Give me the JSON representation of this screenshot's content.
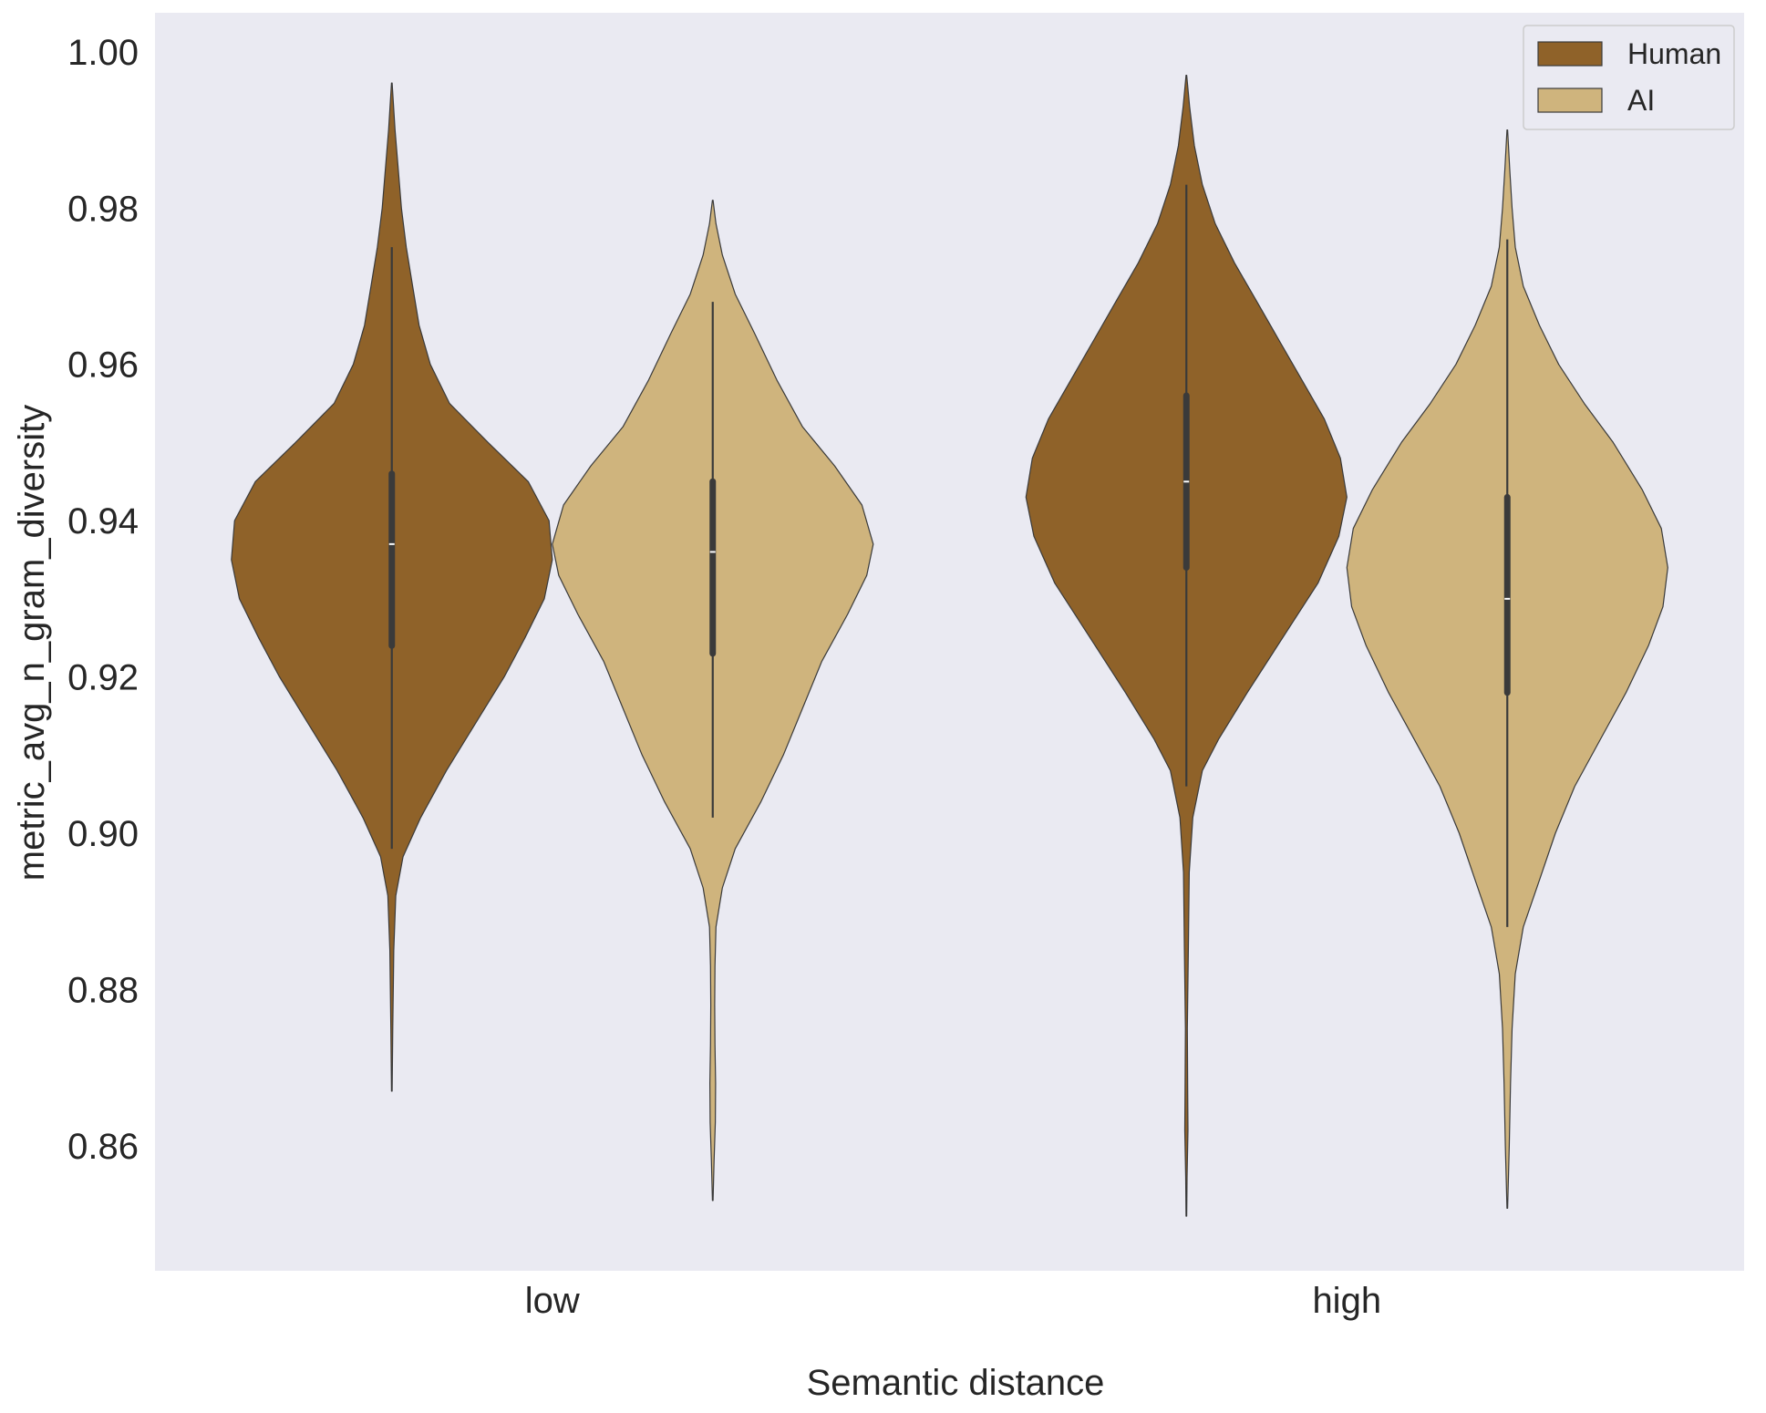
{
  "chart_data": {
    "type": "violin",
    "xlabel": "Semantic distance",
    "ylabel": "metric_avg_n_gram_diversity",
    "categories": [
      "low",
      "high"
    ],
    "ylim": [
      0.844,
      1.005
    ],
    "yticks": [
      "0.86",
      "0.88",
      "0.90",
      "0.92",
      "0.94",
      "0.96",
      "0.98",
      "1.00"
    ],
    "grid": false,
    "legend_position": "top-right",
    "background": "#eaeaf2",
    "series": [
      {
        "name": "Human",
        "color": "#8f6229",
        "groups": [
          {
            "category": "low",
            "min": 0.867,
            "max": 0.996,
            "whisker_low": 0.898,
            "whisker_high": 0.975,
            "q1": 0.924,
            "median": 0.937,
            "q3": 0.946,
            "density": [
              [
                0.867,
                0.002
              ],
              [
                0.875,
                0.006
              ],
              [
                0.885,
                0.012
              ],
              [
                0.892,
                0.025
              ],
              [
                0.897,
                0.07
              ],
              [
                0.902,
                0.18
              ],
              [
                0.908,
                0.34
              ],
              [
                0.915,
                0.55
              ],
              [
                0.92,
                0.7
              ],
              [
                0.925,
                0.83
              ],
              [
                0.93,
                0.95
              ],
              [
                0.935,
                1.0
              ],
              [
                0.94,
                0.98
              ],
              [
                0.945,
                0.85
              ],
              [
                0.95,
                0.6
              ],
              [
                0.955,
                0.36
              ],
              [
                0.96,
                0.24
              ],
              [
                0.965,
                0.17
              ],
              [
                0.97,
                0.13
              ],
              [
                0.975,
                0.09
              ],
              [
                0.98,
                0.06
              ],
              [
                0.985,
                0.04
              ],
              [
                0.99,
                0.02
              ],
              [
                0.996,
                0.002
              ]
            ]
          },
          {
            "category": "high",
            "min": 0.851,
            "max": 0.997,
            "whisker_low": 0.906,
            "whisker_high": 0.983,
            "q1": 0.934,
            "median": 0.945,
            "q3": 0.956,
            "density": [
              [
                0.851,
                0.002
              ],
              [
                0.856,
                0.004
              ],
              [
                0.862,
                0.01
              ],
              [
                0.867,
                0.008
              ],
              [
                0.875,
                0.006
              ],
              [
                0.885,
                0.012
              ],
              [
                0.895,
                0.018
              ],
              [
                0.902,
                0.04
              ],
              [
                0.908,
                0.1
              ],
              [
                0.912,
                0.2
              ],
              [
                0.918,
                0.38
              ],
              [
                0.925,
                0.6
              ],
              [
                0.932,
                0.82
              ],
              [
                0.938,
                0.95
              ],
              [
                0.943,
                1.0
              ],
              [
                0.948,
                0.96
              ],
              [
                0.953,
                0.86
              ],
              [
                0.958,
                0.72
              ],
              [
                0.963,
                0.58
              ],
              [
                0.968,
                0.44
              ],
              [
                0.973,
                0.3
              ],
              [
                0.978,
                0.18
              ],
              [
                0.983,
                0.1
              ],
              [
                0.988,
                0.05
              ],
              [
                0.993,
                0.02
              ],
              [
                0.997,
                0.002
              ]
            ]
          }
        ]
      },
      {
        "name": "AI",
        "color": "#cfb47d",
        "groups": [
          {
            "category": "low",
            "min": 0.853,
            "max": 0.981,
            "whisker_low": 0.902,
            "whisker_high": 0.968,
            "q1": 0.923,
            "median": 0.936,
            "q3": 0.945,
            "density": [
              [
                0.853,
                0.002
              ],
              [
                0.858,
                0.008
              ],
              [
                0.863,
                0.016
              ],
              [
                0.868,
                0.018
              ],
              [
                0.873,
                0.014
              ],
              [
                0.878,
                0.012
              ],
              [
                0.883,
                0.014
              ],
              [
                0.888,
                0.02
              ],
              [
                0.893,
                0.06
              ],
              [
                0.898,
                0.14
              ],
              [
                0.904,
                0.3
              ],
              [
                0.91,
                0.44
              ],
              [
                0.916,
                0.56
              ],
              [
                0.922,
                0.68
              ],
              [
                0.928,
                0.84
              ],
              [
                0.933,
                0.96
              ],
              [
                0.937,
                1.0
              ],
              [
                0.942,
                0.93
              ],
              [
                0.947,
                0.76
              ],
              [
                0.952,
                0.56
              ],
              [
                0.958,
                0.4
              ],
              [
                0.964,
                0.26
              ],
              [
                0.969,
                0.14
              ],
              [
                0.974,
                0.06
              ],
              [
                0.978,
                0.02
              ],
              [
                0.981,
                0.002
              ]
            ]
          },
          {
            "category": "high",
            "min": 0.852,
            "max": 0.99,
            "whisker_low": 0.888,
            "whisker_high": 0.976,
            "q1": 0.918,
            "median": 0.93,
            "q3": 0.943,
            "density": [
              [
                0.852,
                0.002
              ],
              [
                0.86,
                0.012
              ],
              [
                0.868,
                0.02
              ],
              [
                0.875,
                0.03
              ],
              [
                0.882,
                0.05
              ],
              [
                0.888,
                0.1
              ],
              [
                0.894,
                0.2
              ],
              [
                0.9,
                0.3
              ],
              [
                0.906,
                0.42
              ],
              [
                0.912,
                0.58
              ],
              [
                0.918,
                0.74
              ],
              [
                0.924,
                0.88
              ],
              [
                0.929,
                0.97
              ],
              [
                0.934,
                1.0
              ],
              [
                0.939,
                0.96
              ],
              [
                0.944,
                0.84
              ],
              [
                0.95,
                0.66
              ],
              [
                0.955,
                0.48
              ],
              [
                0.96,
                0.32
              ],
              [
                0.965,
                0.2
              ],
              [
                0.97,
                0.1
              ],
              [
                0.975,
                0.05
              ],
              [
                0.98,
                0.03
              ],
              [
                0.985,
                0.015
              ],
              [
                0.99,
                0.002
              ]
            ]
          }
        ]
      }
    ]
  }
}
